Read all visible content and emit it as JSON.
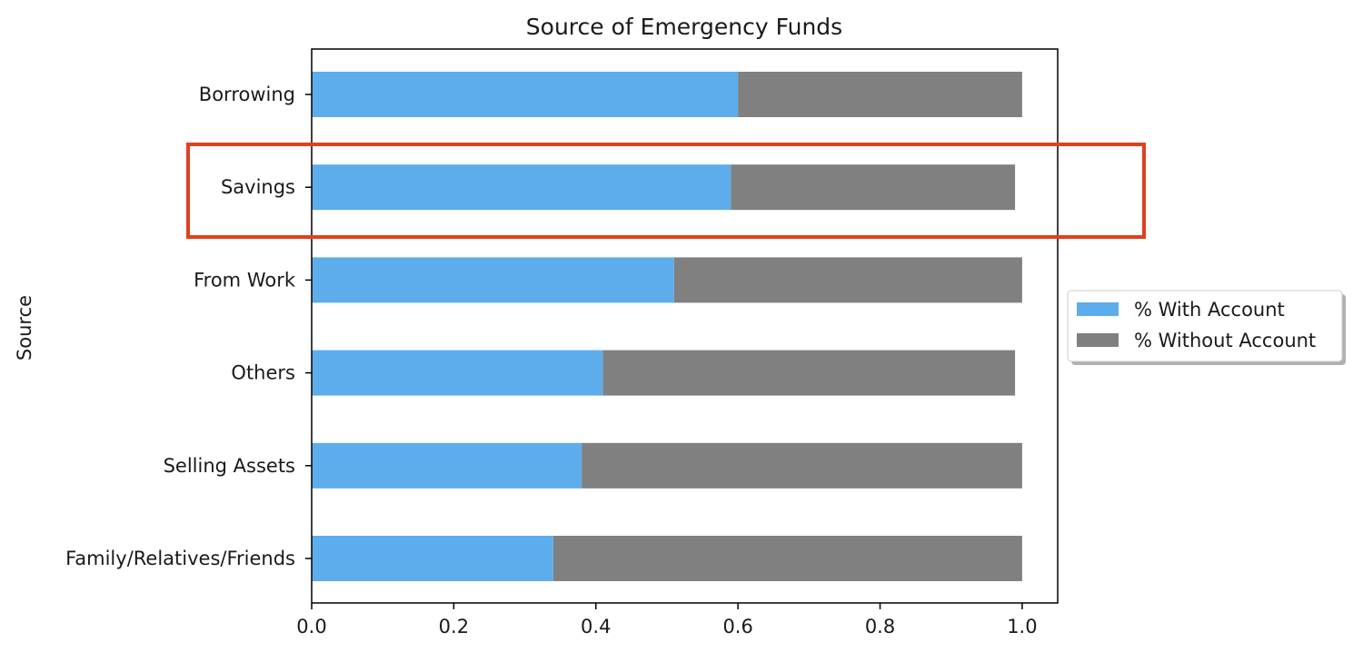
{
  "chart_data": {
    "type": "bar",
    "orientation": "horizontal",
    "stacked": true,
    "title": "Source of Emergency Funds",
    "xlabel": "",
    "ylabel": "Source",
    "xlim": [
      0,
      1.05
    ],
    "xticks": [
      0.0,
      0.2,
      0.4,
      0.6,
      0.8,
      1.0
    ],
    "xtick_labels": [
      "0.0",
      "0.2",
      "0.4",
      "0.6",
      "0.8",
      "1.0"
    ],
    "categories": [
      "Family/Relatives/Friends",
      "Selling Assets",
      "Others",
      "From Work",
      "Savings",
      "Borrowing"
    ],
    "series": [
      {
        "name": "% With Account",
        "color": "#5DADEC",
        "values": [
          0.34,
          0.38,
          0.41,
          0.51,
          0.59,
          0.6
        ]
      },
      {
        "name": "% Without Account",
        "color": "#808080",
        "values": [
          0.66,
          0.62,
          0.58,
          0.49,
          0.4,
          0.4
        ]
      }
    ],
    "grid": false,
    "legend_position": "outside-right",
    "highlight": {
      "category": "Savings",
      "color": "#E0401E"
    }
  }
}
